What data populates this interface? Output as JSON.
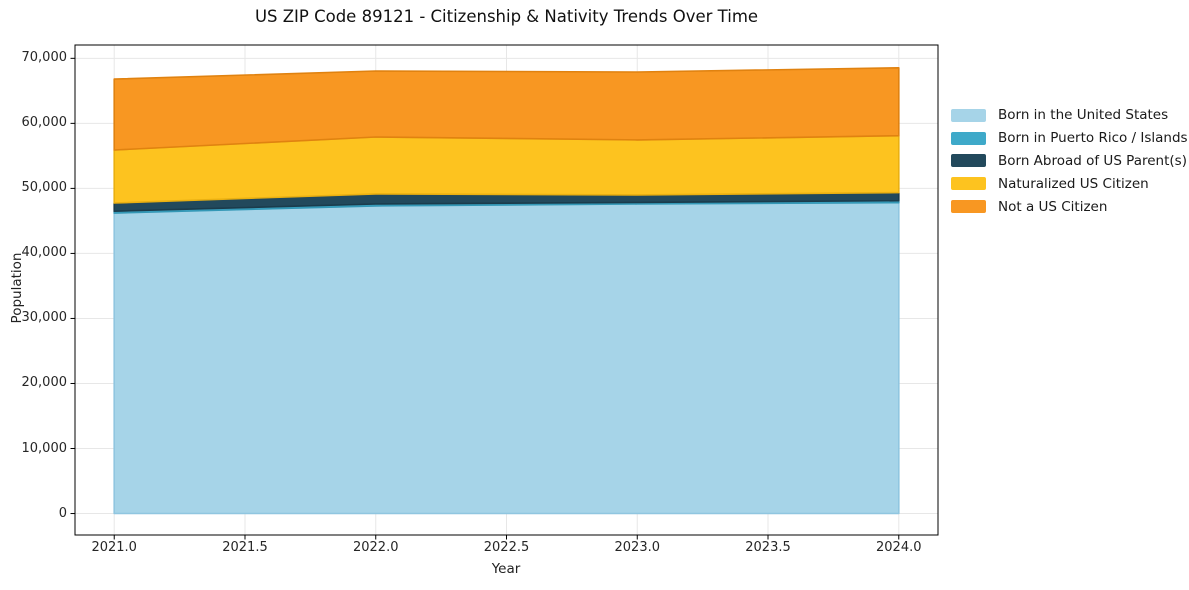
{
  "chart_data": {
    "type": "area",
    "stacked": true,
    "title": "US ZIP Code 89121 - Citizenship & Nativity Trends Over Time",
    "xlabel": "Year",
    "ylabel": "Population",
    "x": [
      2021,
      2022,
      2023,
      2024
    ],
    "series": [
      {
        "name": "Born in the United States",
        "color": "#a6d4e8",
        "edge_color": "#90c6e0",
        "values": [
          46200,
          47300,
          47600,
          47800
        ]
      },
      {
        "name": "Born in Puerto Rico / Islands",
        "color": "#3ea9c9",
        "edge_color": "#3498b6",
        "values": [
          300,
          300,
          250,
          300
        ]
      },
      {
        "name": "Born Abroad of US Parent(s)",
        "color": "#22495c",
        "edge_color": "#1b3c4c",
        "values": [
          1250,
          1550,
          1150,
          1250
        ]
      },
      {
        "name": "Naturalized US Citizen",
        "color": "#fdc31f",
        "edge_color": "#eab011",
        "values": [
          8150,
          8750,
          8450,
          8750
        ]
      },
      {
        "name": "Not a US Citizen",
        "color": "#f89722",
        "edge_color": "#e08210",
        "values": [
          10900,
          10150,
          10450,
          10450
        ]
      }
    ],
    "totals": [
      66800,
      68050,
      67900,
      68550
    ],
    "xlim": [
      2020.85,
      2024.15
    ],
    "ylim": [
      -3300,
      72050
    ],
    "x_ticks": {
      "values": [
        2021.0,
        2021.5,
        2022.0,
        2022.5,
        2023.0,
        2023.5,
        2024.0
      ],
      "labels": [
        "2021.0",
        "2021.5",
        "2022.0",
        "2022.5",
        "2023.0",
        "2023.5",
        "2024.0"
      ]
    },
    "y_ticks": {
      "values": [
        0,
        10000,
        20000,
        30000,
        40000,
        50000,
        60000,
        70000
      ],
      "labels": [
        "0",
        "10,000",
        "20,000",
        "30,000",
        "40,000",
        "50,000",
        "60,000",
        "70,000"
      ]
    },
    "grid": true,
    "grid_color": "#e7e7e7",
    "spine_color": "#000000",
    "legend_position": "right"
  }
}
